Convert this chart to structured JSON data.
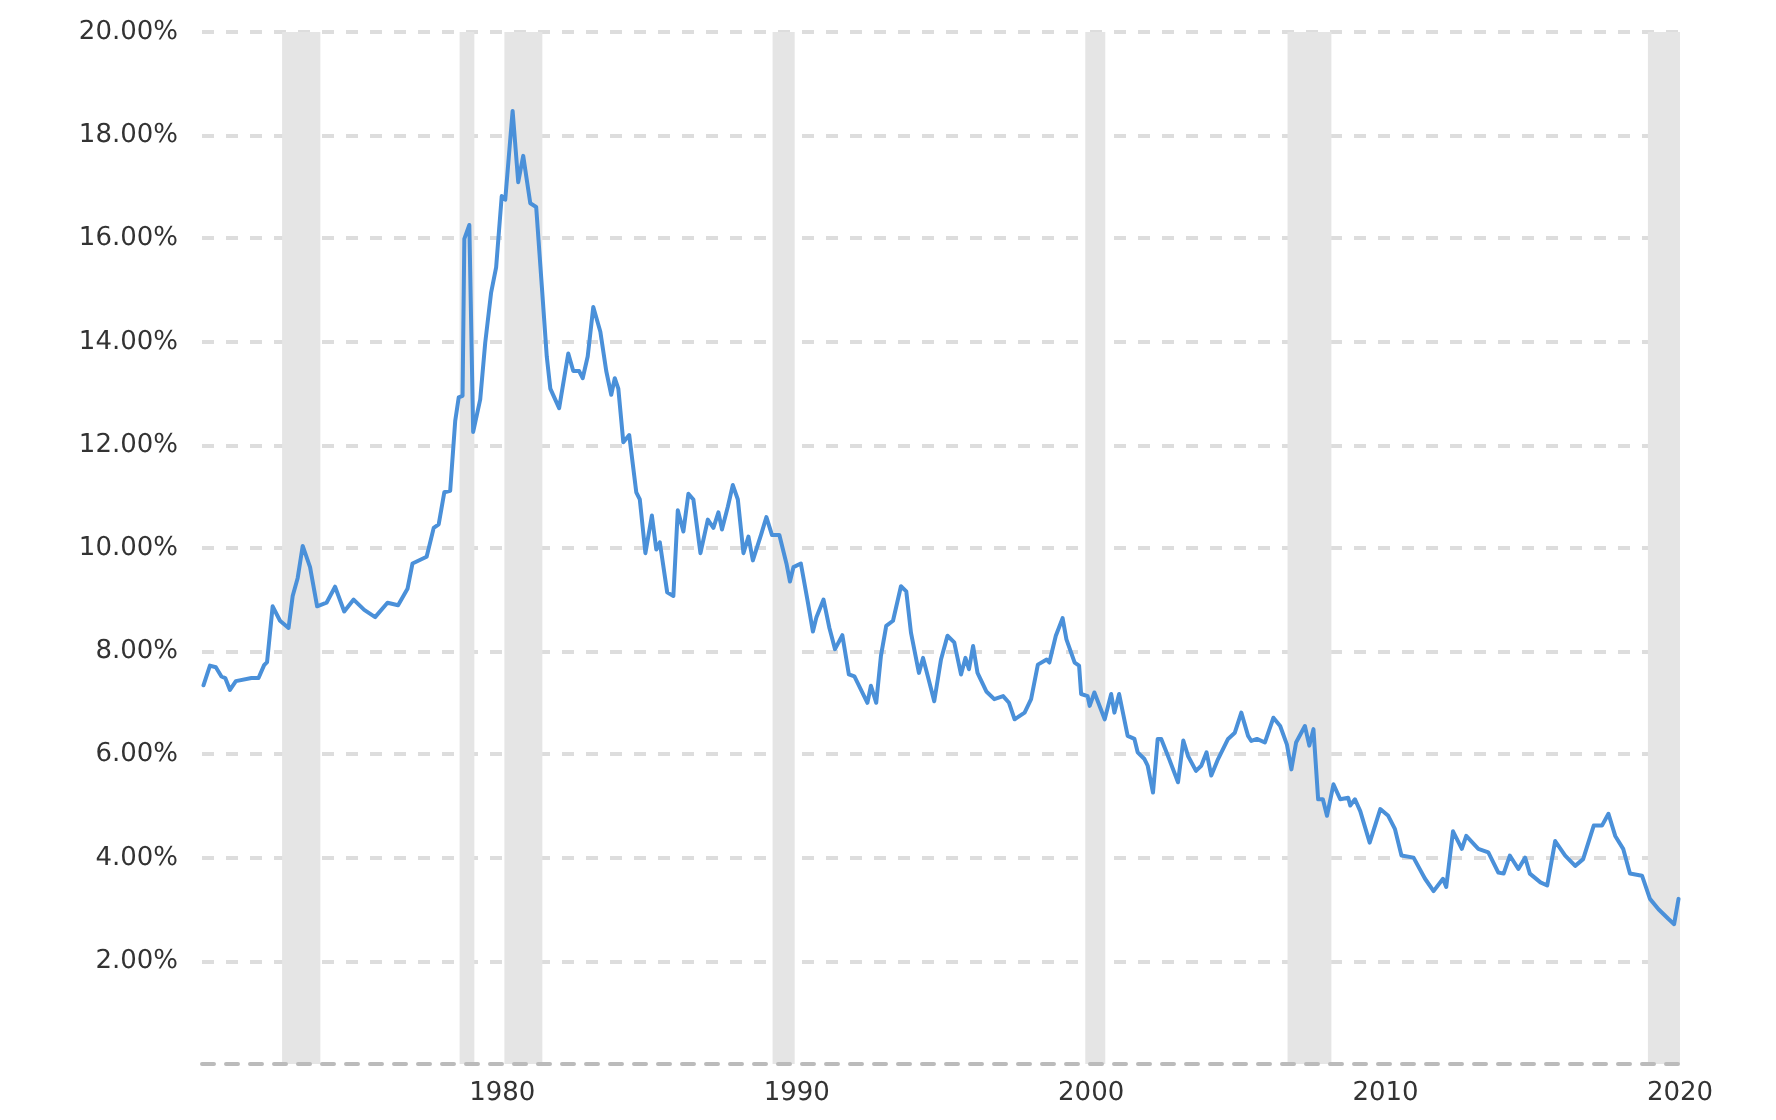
{
  "chart_data": {
    "type": "line",
    "x": [
      1969.85,
      1970.07,
      1970.27,
      1970.46,
      1970.59,
      1970.75,
      1970.95,
      1971.48,
      1971.72,
      1971.91,
      1972.01,
      1972.2,
      1972.45,
      1972.74,
      1972.88,
      1973.05,
      1973.22,
      1973.47,
      1973.71,
      1974.03,
      1974.32,
      1974.63,
      1974.95,
      1975.31,
      1975.68,
      1976.1,
      1976.46,
      1976.78,
      1976.95,
      1977.43,
      1977.67,
      1977.84,
      1978.03,
      1978.23,
      1978.4,
      1978.52,
      1978.65,
      1978.71,
      1978.88,
      1979.01,
      1979.25,
      1979.42,
      1979.62,
      1979.79,
      1979.98,
      1980.1,
      1980.35,
      1980.54,
      1980.71,
      1980.95,
      1981.15,
      1981.34,
      1981.51,
      1981.63,
      1981.93,
      1982.24,
      1982.41,
      1982.61,
      1982.73,
      1982.9,
      1983.09,
      1983.33,
      1983.53,
      1983.7,
      1983.82,
      1983.94,
      1984.11,
      1984.31,
      1984.55,
      1984.67,
      1984.86,
      1985.08,
      1985.23,
      1985.35,
      1985.6,
      1985.81,
      1985.96,
      1986.15,
      1986.32,
      1986.49,
      1986.73,
      1986.98,
      1987.17,
      1987.34,
      1987.46,
      1987.66,
      1987.83,
      1988.0,
      1988.19,
      1988.36,
      1988.51,
      1988.8,
      1988.97,
      1989.16,
      1989.41,
      1989.65,
      1989.77,
      1989.89,
      1990.14,
      1990.38,
      1990.55,
      1990.67,
      1990.91,
      1991.11,
      1991.3,
      1991.55,
      1991.77,
      1991.96,
      1992.4,
      1992.52,
      1992.7,
      1992.86,
      1993.04,
      1993.27,
      1993.54,
      1993.72,
      1993.88,
      1994.15,
      1994.29,
      1994.45,
      1994.67,
      1994.9,
      1995.12,
      1995.35,
      1995.58,
      1995.73,
      1995.85,
      1995.99,
      1996.14,
      1996.44,
      1996.71,
      1997.01,
      1997.21,
      1997.4,
      1997.74,
      1997.96,
      1998.19,
      1998.49,
      1998.58,
      1998.8,
      1999.03,
      1999.16,
      1999.44,
      1999.59,
      1999.66,
      1999.88,
      1999.95,
      2000.11,
      2000.46,
      2000.68,
      2000.79,
      2000.95,
      2001.24,
      2001.47,
      2001.58,
      2001.81,
      2001.92,
      2002.1,
      2002.26,
      2002.38,
      2002.65,
      2002.95,
      2003.13,
      2003.29,
      2003.56,
      2003.74,
      2003.92,
      2004.08,
      2004.31,
      2004.65,
      2004.88,
      2005.1,
      2005.33,
      2005.44,
      2005.63,
      2005.9,
      2006.19,
      2006.42,
      2006.65,
      2006.8,
      2006.96,
      2007.26,
      2007.41,
      2007.55,
      2007.71,
      2007.87,
      2008.01,
      2008.23,
      2008.46,
      2008.73,
      2008.8,
      2008.96,
      2009.14,
      2009.46,
      2009.82,
      2010.09,
      2010.32,
      2010.54,
      2010.95,
      2011.34,
      2011.63,
      2011.95,
      2012.06,
      2012.29,
      2012.59,
      2012.74,
      2013.15,
      2013.49,
      2013.83,
      2014.01,
      2014.22,
      2014.51,
      2014.74,
      2014.9,
      2015.26,
      2015.49,
      2015.76,
      2016.1,
      2016.44,
      2016.71,
      2017.07,
      2017.35,
      2017.57,
      2017.8,
      2018.07,
      2018.3,
      2018.71,
      2018.98,
      2019.27,
      2019.61,
      2019.8,
      2019.95
    ],
    "series": [
      {
        "color": "#4a90d9",
        "values": [
          7.34,
          7.72,
          7.69,
          7.51,
          7.48,
          7.25,
          7.42,
          7.48,
          7.48,
          7.73,
          7.79,
          8.87,
          8.59,
          8.45,
          9.07,
          9.42,
          10.04,
          9.63,
          8.87,
          8.94,
          9.25,
          8.77,
          9.0,
          8.8,
          8.66,
          8.94,
          8.89,
          9.21,
          9.7,
          9.83,
          10.39,
          10.46,
          11.08,
          11.11,
          12.46,
          12.92,
          12.95,
          15.99,
          16.26,
          12.25,
          12.88,
          13.98,
          14.95,
          15.44,
          16.82,
          16.75,
          18.47,
          17.09,
          17.6,
          16.68,
          16.61,
          15.09,
          13.71,
          13.09,
          12.71,
          13.77,
          13.43,
          13.43,
          13.29,
          13.71,
          14.67,
          14.19,
          13.43,
          12.97,
          13.29,
          13.09,
          12.05,
          12.19,
          11.08,
          10.94,
          9.9,
          10.63,
          9.97,
          10.11,
          9.14,
          9.07,
          10.73,
          10.32,
          11.05,
          10.94,
          9.9,
          10.55,
          10.39,
          10.69,
          10.36,
          10.8,
          11.22,
          10.94,
          9.9,
          10.22,
          9.76,
          10.28,
          10.6,
          10.25,
          10.25,
          9.7,
          9.35,
          9.63,
          9.7,
          8.94,
          8.38,
          8.66,
          9.0,
          8.45,
          8.04,
          8.31,
          7.55,
          7.51,
          7.0,
          7.33,
          7.0,
          7.91,
          8.49,
          8.59,
          9.26,
          9.16,
          8.36,
          7.58,
          7.87,
          7.52,
          7.03,
          7.84,
          8.3,
          8.17,
          7.55,
          7.87,
          7.65,
          8.1,
          7.58,
          7.22,
          7.07,
          7.13,
          7.0,
          6.68,
          6.81,
          7.07,
          7.74,
          7.84,
          7.78,
          8.3,
          8.64,
          8.23,
          7.78,
          7.72,
          7.17,
          7.13,
          6.94,
          7.2,
          6.68,
          7.17,
          6.81,
          7.17,
          6.36,
          6.3,
          6.04,
          5.91,
          5.78,
          5.26,
          6.3,
          6.3,
          5.91,
          5.46,
          6.27,
          5.97,
          5.68,
          5.78,
          6.04,
          5.59,
          5.91,
          6.3,
          6.42,
          6.81,
          6.36,
          6.26,
          6.3,
          6.23,
          6.71,
          6.55,
          6.19,
          5.71,
          6.23,
          6.55,
          6.17,
          6.49,
          5.13,
          5.13,
          4.81,
          5.42,
          5.13,
          5.16,
          5.01,
          5.13,
          4.9,
          4.29,
          4.94,
          4.81,
          4.55,
          4.04,
          4.0,
          3.59,
          3.35,
          3.59,
          3.43,
          4.51,
          4.17,
          4.42,
          4.17,
          4.1,
          3.71,
          3.69,
          4.04,
          3.78,
          4.0,
          3.69,
          3.52,
          3.46,
          4.32,
          4.04,
          3.84,
          3.97,
          4.62,
          4.62,
          4.85,
          4.42,
          4.17,
          3.69,
          3.65,
          3.2,
          3.0,
          2.81,
          2.71,
          3.2
        ]
      }
    ],
    "xlim": [
      1969.8,
      2020
    ],
    "xticks": [
      1980,
      1990,
      2000,
      2010,
      2020
    ],
    "ylim": [
      0,
      20
    ],
    "yticks": [
      {
        "value": 0,
        "label": null
      },
      {
        "value": 2,
        "label": "2.00%"
      },
      {
        "value": 4,
        "label": "4.00%"
      },
      {
        "value": 6,
        "label": "6.00%"
      },
      {
        "value": 8,
        "label": "8.00%"
      },
      {
        "value": 10,
        "label": "10.00%"
      },
      {
        "value": 12,
        "label": "12.00%"
      },
      {
        "value": 14,
        "label": "14.00%"
      },
      {
        "value": 16,
        "label": "16.00%"
      },
      {
        "value": 18,
        "label": "18.00%"
      },
      {
        "value": 20,
        "label": "20.00%"
      }
    ],
    "bands": [
      {
        "axis": "x",
        "from": 1972.52,
        "to": 1973.82,
        "color": "#e5e5e5"
      },
      {
        "axis": "x",
        "from": 1978.55,
        "to": 1979.05,
        "color": "#e5e5e5"
      },
      {
        "axis": "x",
        "from": 1980.07,
        "to": 1981.36,
        "color": "#e5e5e5"
      },
      {
        "axis": "x",
        "from": 1989.18,
        "to": 1989.93,
        "color": "#e5e5e5"
      },
      {
        "axis": "x",
        "from": 1999.8,
        "to": 2000.48,
        "color": "#e5e5e5"
      },
      {
        "axis": "x",
        "from": 2006.67,
        "to": 2008.16,
        "color": "#e5e5e5"
      },
      {
        "axis": "x",
        "from": 2018.91,
        "to": 2020,
        "color": "#e5e5e5"
      }
    ],
    "grid": "y",
    "marker": "none",
    "line_style": "solid"
  }
}
